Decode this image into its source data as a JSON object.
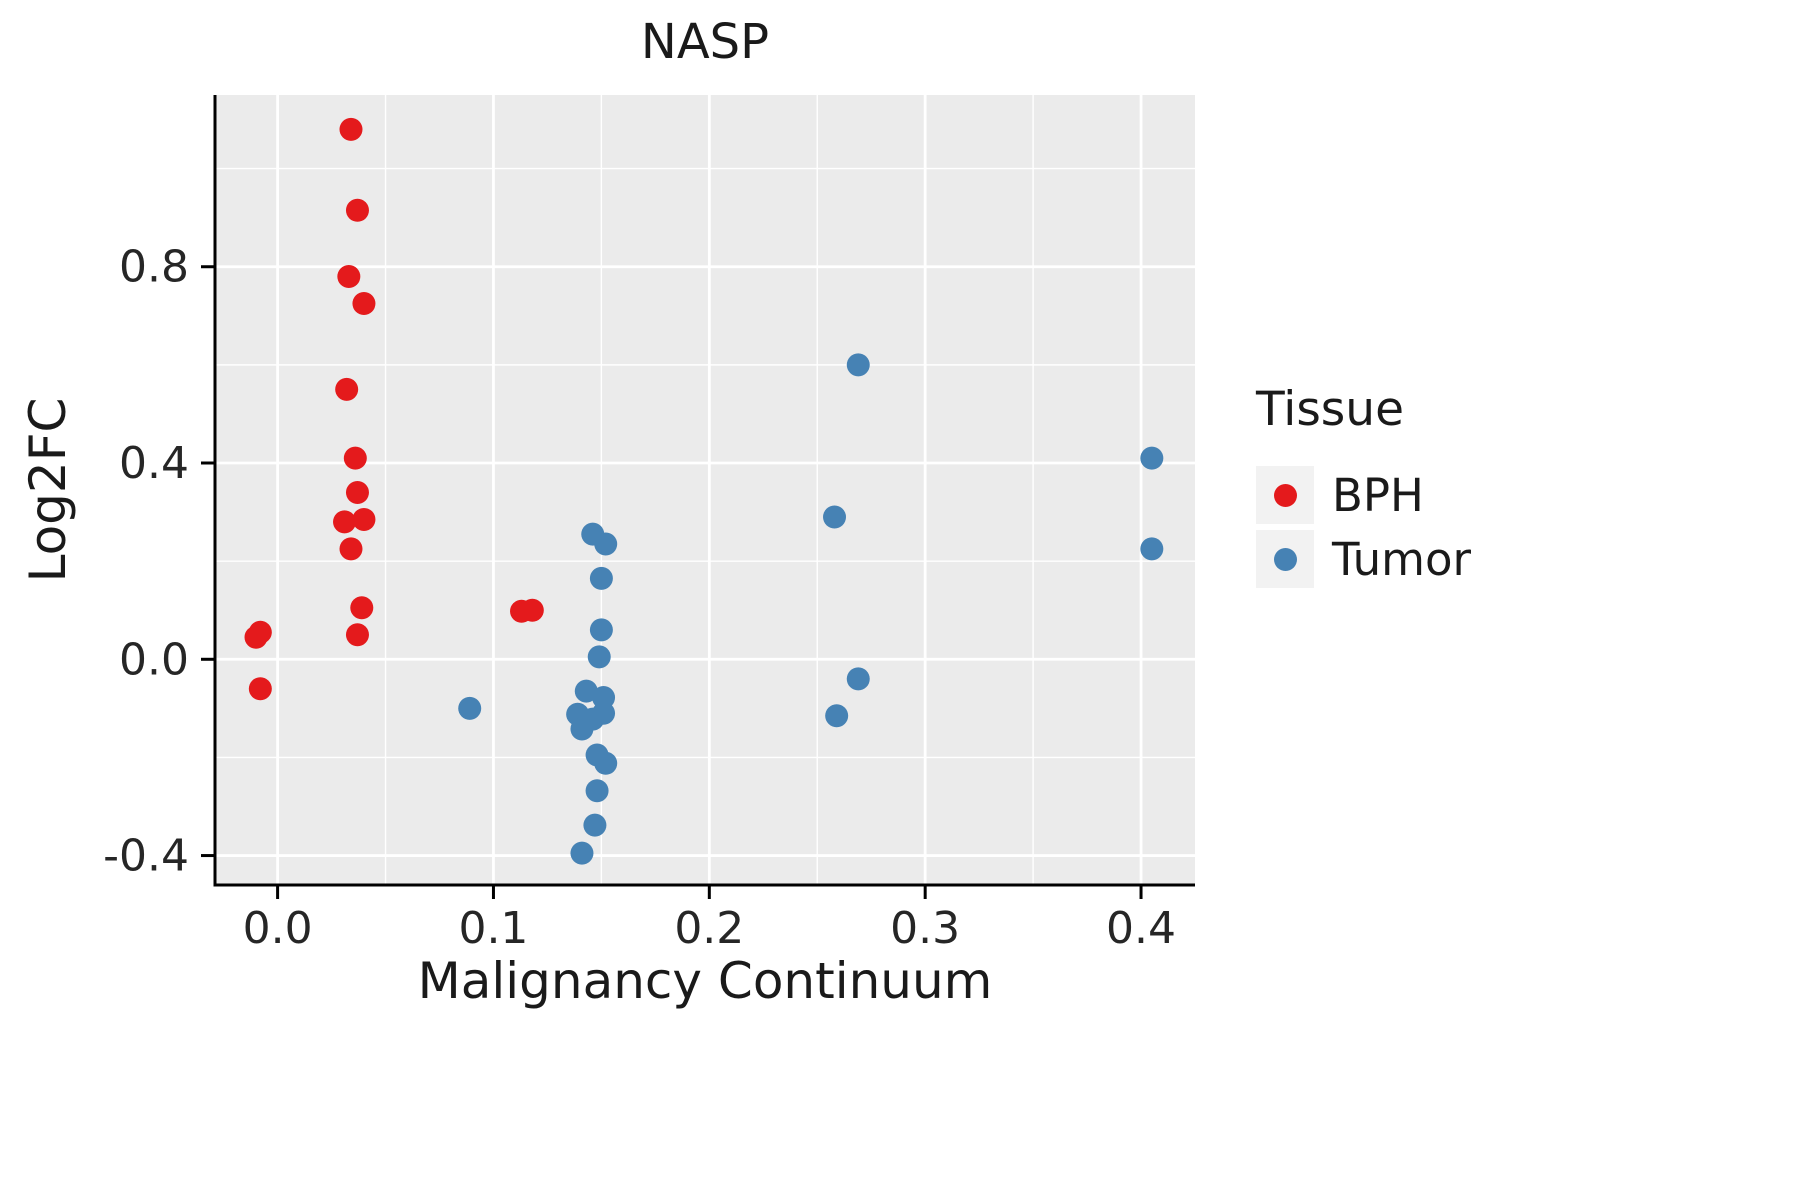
{
  "chart_data": {
    "type": "scatter",
    "title": "NASP",
    "xlabel": "Malignancy Continuum",
    "ylabel": "Log2FC",
    "legend_title": "Tissue",
    "grid": true,
    "legend_position": "right",
    "panel_bg": "#EBEBEB",
    "grid_color": "#FFFFFF",
    "axis_color": "#000000",
    "tick_label_color": "#262626",
    "xlim": [
      -0.029,
      0.425
    ],
    "ylim": [
      -0.46,
      1.15
    ],
    "x_ticks": [
      0.0,
      0.1,
      0.2,
      0.3,
      0.4
    ],
    "x_tick_labels": [
      "0.0",
      "0.1",
      "0.2",
      "0.3",
      "0.4"
    ],
    "x_minor_ticks": [
      0.05,
      0.15,
      0.25,
      0.35
    ],
    "y_ticks": [
      -0.4,
      0.0,
      0.4,
      0.8
    ],
    "y_tick_labels": [
      "-0.4",
      "0.0",
      "0.4",
      "0.8"
    ],
    "y_minor_ticks": [
      -0.2,
      0.2,
      0.6,
      1.0
    ],
    "series": [
      {
        "name": "BPH",
        "color": "#E41A1C",
        "points": [
          [
            -0.008,
            0.055
          ],
          [
            -0.01,
            0.045
          ],
          [
            -0.008,
            -0.06
          ],
          [
            0.034,
            1.08
          ],
          [
            0.037,
            0.915
          ],
          [
            0.033,
            0.78
          ],
          [
            0.04,
            0.725
          ],
          [
            0.032,
            0.55
          ],
          [
            0.036,
            0.41
          ],
          [
            0.037,
            0.34
          ],
          [
            0.031,
            0.28
          ],
          [
            0.04,
            0.285
          ],
          [
            0.034,
            0.225
          ],
          [
            0.039,
            0.105
          ],
          [
            0.037,
            0.05
          ],
          [
            0.113,
            0.098
          ],
          [
            0.118,
            0.1
          ]
        ]
      },
      {
        "name": "Tumor",
        "color": "#4682B4",
        "points": [
          [
            0.089,
            -0.1
          ],
          [
            0.146,
            0.255
          ],
          [
            0.152,
            0.235
          ],
          [
            0.15,
            0.165
          ],
          [
            0.15,
            0.06
          ],
          [
            0.149,
            0.005
          ],
          [
            0.143,
            -0.065
          ],
          [
            0.151,
            -0.078
          ],
          [
            0.139,
            -0.112
          ],
          [
            0.146,
            -0.122
          ],
          [
            0.151,
            -0.11
          ],
          [
            0.141,
            -0.142
          ],
          [
            0.148,
            -0.195
          ],
          [
            0.152,
            -0.212
          ],
          [
            0.148,
            -0.268
          ],
          [
            0.147,
            -0.338
          ],
          [
            0.141,
            -0.395
          ],
          [
            0.269,
            0.6
          ],
          [
            0.258,
            0.29
          ],
          [
            0.269,
            -0.04
          ],
          [
            0.259,
            -0.115
          ],
          [
            0.405,
            0.41
          ],
          [
            0.405,
            0.225
          ]
        ]
      }
    ]
  }
}
